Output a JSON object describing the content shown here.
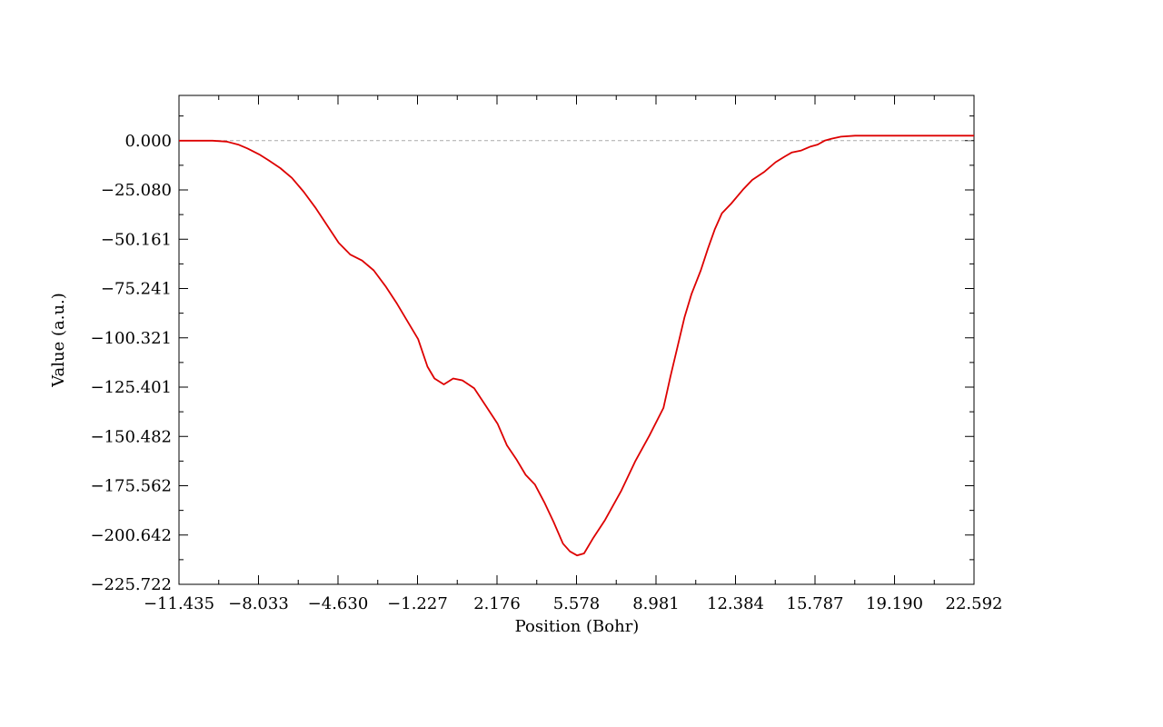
{
  "chart_data": {
    "type": "line",
    "title": "",
    "xlabel": "Position (Bohr)",
    "ylabel": "Value (a.u.)",
    "xlim": [
      -11.435,
      22.592
    ],
    "ylim": [
      -225.722,
      23
    ],
    "x_ticks": [
      "−11.435",
      "−8.033",
      "−4.630",
      "−1.227",
      "2.176",
      "5.578",
      "8.981",
      "12.384",
      "15.787",
      "19.190",
      "22.592"
    ],
    "x_tick_values": [
      -11.435,
      -8.033,
      -4.63,
      -1.227,
      2.176,
      5.578,
      8.981,
      12.384,
      15.787,
      19.19,
      22.592
    ],
    "y_ticks": [
      "0.000",
      "−25.080",
      "−50.161",
      "−75.241",
      "−100.321",
      "−125.401",
      "−150.482",
      "−175.562",
      "−200.642",
      "−225.722"
    ],
    "y_tick_values": [
      0,
      -25.08,
      -50.161,
      -75.241,
      -100.321,
      -125.401,
      -150.482,
      -175.562,
      -200.642,
      -225.722
    ],
    "reference_line": {
      "y": 0,
      "style": "dashed",
      "color": "#aaaaaa"
    },
    "series": [
      {
        "color": "#dd0000",
        "x": [
          -11.435,
          -10.0,
          -9.4,
          -8.9,
          -8.5,
          -8.0,
          -7.6,
          -7.1,
          -6.6,
          -6.1,
          -5.6,
          -5.1,
          -4.6,
          -4.1,
          -3.6,
          -3.1,
          -2.6,
          -2.1,
          -1.6,
          -1.2,
          -0.8,
          -0.5,
          -0.1,
          0.3,
          0.7,
          1.2,
          1.7,
          2.2,
          2.6,
          3.0,
          3.4,
          3.8,
          4.2,
          4.6,
          5.0,
          5.3,
          5.6,
          5.9,
          6.3,
          6.8,
          7.5,
          8.1,
          8.7,
          9.3,
          9.6,
          9.9,
          10.2,
          10.5,
          10.9,
          11.2,
          11.5,
          11.8,
          12.2,
          12.7,
          13.1,
          13.6,
          14.1,
          14.5,
          14.8,
          15.2,
          15.6,
          15.9,
          16.2,
          16.5,
          16.9,
          17.5,
          18.5,
          20.5,
          22.592
        ],
        "y": [
          0,
          0,
          -0.5,
          -2,
          -4,
          -7,
          -10,
          -14,
          -19,
          -26,
          -34,
          -43,
          -52,
          -58,
          -61,
          -66,
          -74,
          -83,
          -93,
          -101,
          -115,
          -121,
          -124,
          -121,
          -122,
          -126,
          -135,
          -144,
          -155,
          -162,
          -170,
          -175,
          -184,
          -194,
          -205,
          -209,
          -211,
          -210,
          -202,
          -193,
          -178,
          -163,
          -150,
          -136,
          -120,
          -105,
          -90,
          -78,
          -66,
          -55,
          -45,
          -37,
          -32,
          -25,
          -20,
          -16,
          -11,
          -8,
          -6,
          -5,
          -3,
          -2,
          0,
          1,
          2,
          2.5,
          2.5,
          2.5,
          2.5
        ]
      }
    ],
    "grid": false,
    "legend": "none"
  }
}
